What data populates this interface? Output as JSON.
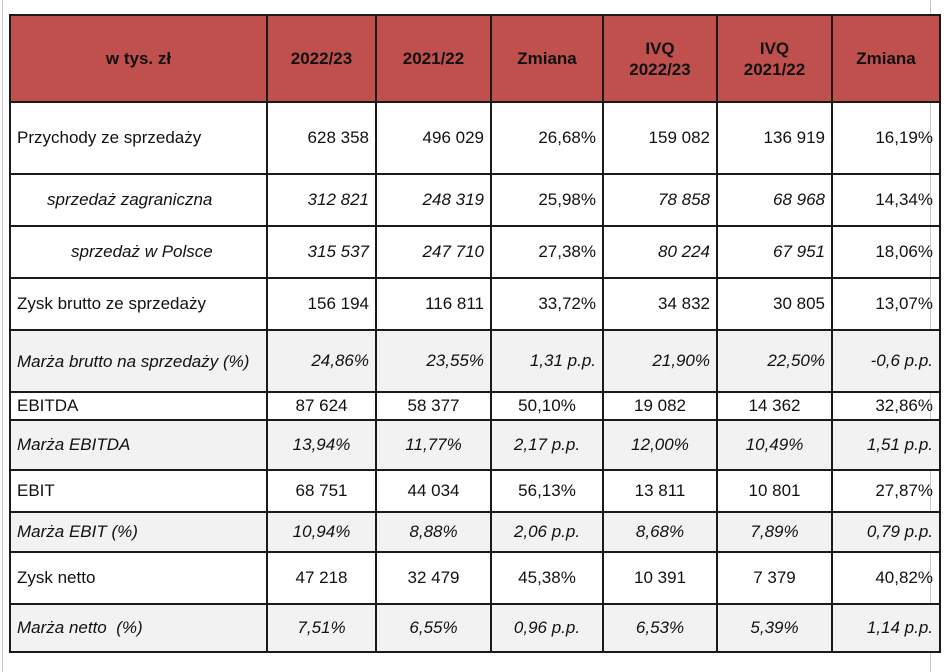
{
  "header": {
    "label": "w tys. zł",
    "col1": "2022/23",
    "col2": "2021/22",
    "col3": "Zmiana",
    "col4_line1": "IVQ",
    "col4_line2": "2022/23",
    "col5_line1": "IVQ",
    "col5_line2": "2021/22",
    "col6": "Zmiana"
  },
  "rows": [
    {
      "label": "Przychody ze sprzedaży",
      "v1": "628 358",
      "v2": "496 029",
      "v3": "26,68%",
      "v4": "159 082",
      "v5": "136 919",
      "v6": "16,19%"
    },
    {
      "label": "sprzedaż zagraniczna",
      "v1": "312 821",
      "v2": "248 319",
      "v3": "25,98%",
      "v4": "78 858",
      "v5": "68 968",
      "v6": "14,34%"
    },
    {
      "label": "sprzedaż w Polsce",
      "v1": "315 537",
      "v2": "247 710",
      "v3": "27,38%",
      "v4": "80 224",
      "v5": "67 951",
      "v6": "18,06%"
    },
    {
      "label": "Zysk brutto ze sprzedaży",
      "v1": "156 194",
      "v2": "116 811",
      "v3": "33,72%",
      "v4": "34 832",
      "v5": "30 805",
      "v6": "13,07%"
    },
    {
      "label": "Marża brutto na sprzedaży (%)",
      "v1": "24,86%",
      "v2": "23,55%",
      "v3": "1,31 p.p.",
      "v4": "21,90%",
      "v5": "22,50%",
      "v6": "-0,6 p.p."
    },
    {
      "label": "EBITDA",
      "v1": "87 624",
      "v2": "58 377",
      "v3": "50,10%",
      "v4": "19 082",
      "v5": "14 362",
      "v6": "32,86%"
    },
    {
      "label": "Marża EBITDA",
      "v1": "13,94%",
      "v2": "11,77%",
      "v3": "2,17 p.p.",
      "v4": "12,00%",
      "v5": "10,49%",
      "v6": "1,51 p.p."
    },
    {
      "label": "EBIT",
      "v1": "68 751",
      "v2": "44 034",
      "v3": "56,13%",
      "v4": "13 811",
      "v5": "10 801",
      "v6": "27,87%"
    },
    {
      "label": "Marża EBIT (%)",
      "v1": "10,94%",
      "v2": "8,88%",
      "v3": "2,06 p.p.",
      "v4": "8,68%",
      "v5": "7,89%",
      "v6": "0,79 p.p."
    },
    {
      "label": "Zysk netto",
      "v1": "47 218",
      "v2": "32 479",
      "v3": "45,38%",
      "v4": "10 391",
      "v5": "7 379",
      "v6": "40,82%"
    },
    {
      "label": "Marża netto  (%)",
      "v1": "7,51%",
      "v2": "6,55%",
      "v3": "0,96 p.p.",
      "v4": "6,53%",
      "v5": "5,39%",
      "v6": "1,14 p.p."
    }
  ]
}
